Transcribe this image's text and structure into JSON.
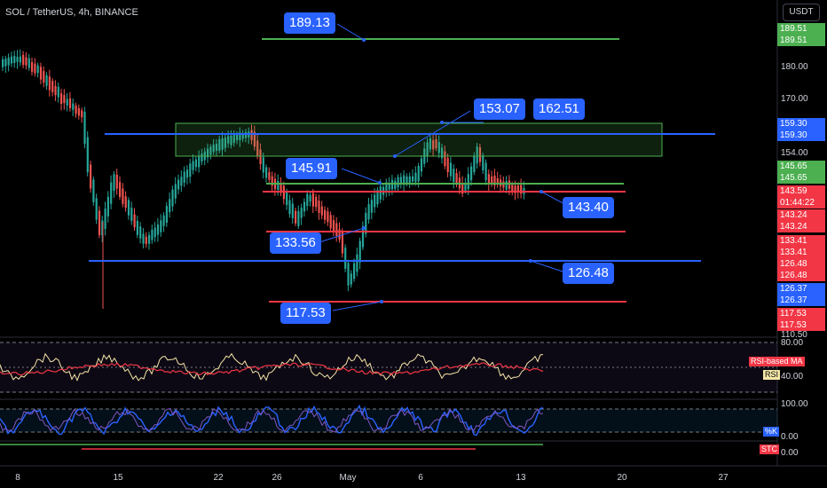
{
  "header": {
    "title": "SOL / TetherUS, 4h, BINANCE",
    "currency_button": "USDT"
  },
  "price_axis": {
    "labels": [
      "189.51",
      "189.51",
      "180.00",
      "170.00",
      "159.30",
      "159.30",
      "154.00",
      "145.65",
      "145.65",
      "143.59",
      "01:44:22",
      "143.24",
      "143.24",
      "133.41",
      "133.41",
      "126.48",
      "126.48",
      "126.37",
      "126.37",
      "117.53",
      "117.53",
      "110.50"
    ],
    "tags": [
      {
        "label": "189.51",
        "color": "#4caf50"
      },
      {
        "label": "189.51",
        "color": "#4caf50"
      },
      {
        "label": "159.30",
        "color": "#2962ff"
      },
      {
        "label": "159.30",
        "color": "#2962ff"
      },
      {
        "label": "145.65",
        "color": "#4caf50"
      },
      {
        "label": "145.65",
        "color": "#4caf50"
      },
      {
        "label": "143.59",
        "color": "#f23645"
      },
      {
        "label": "01:44:22",
        "color": "#f23645"
      },
      {
        "label": "143.24",
        "color": "#f23645"
      },
      {
        "label": "143.24",
        "color": "#f23645"
      },
      {
        "label": "133.41",
        "color": "#f23645"
      },
      {
        "label": "133.41",
        "color": "#f23645"
      },
      {
        "label": "126.48",
        "color": "#f23645"
      },
      {
        "label": "126.48",
        "color": "#f23645"
      },
      {
        "label": "126.37",
        "color": "#2962ff"
      },
      {
        "label": "126.37",
        "color": "#2962ff"
      },
      {
        "label": "117.53",
        "color": "#f23645"
      },
      {
        "label": "117.53",
        "color": "#f23645"
      }
    ],
    "plain": [
      "180.00",
      "170.00",
      "154.00",
      "110.50"
    ]
  },
  "callouts": [
    "189.13",
    "153.07",
    "162.51",
    "145.91",
    "143.40",
    "133.56",
    "126.48",
    "117.53"
  ],
  "rsi_panel": {
    "level_top": "80.00",
    "level_bottom": "40.00",
    "ma_label": "RSI-based MA",
    "rsi_label": "RSI"
  },
  "stoch_panel": {
    "level_top": "100.00",
    "level_bottom": "0.00",
    "k_label": "%K"
  },
  "stc_panel": {
    "level": "0.00",
    "label": "STC"
  },
  "x_axis": [
    "8",
    "15",
    "22",
    "26",
    "May",
    "6",
    "13",
    "20",
    "27"
  ],
  "colors": {
    "up": "#26a69a",
    "down": "#ef5350",
    "blue": "#2962ff",
    "green": "#4caf50",
    "red": "#f23645"
  }
}
